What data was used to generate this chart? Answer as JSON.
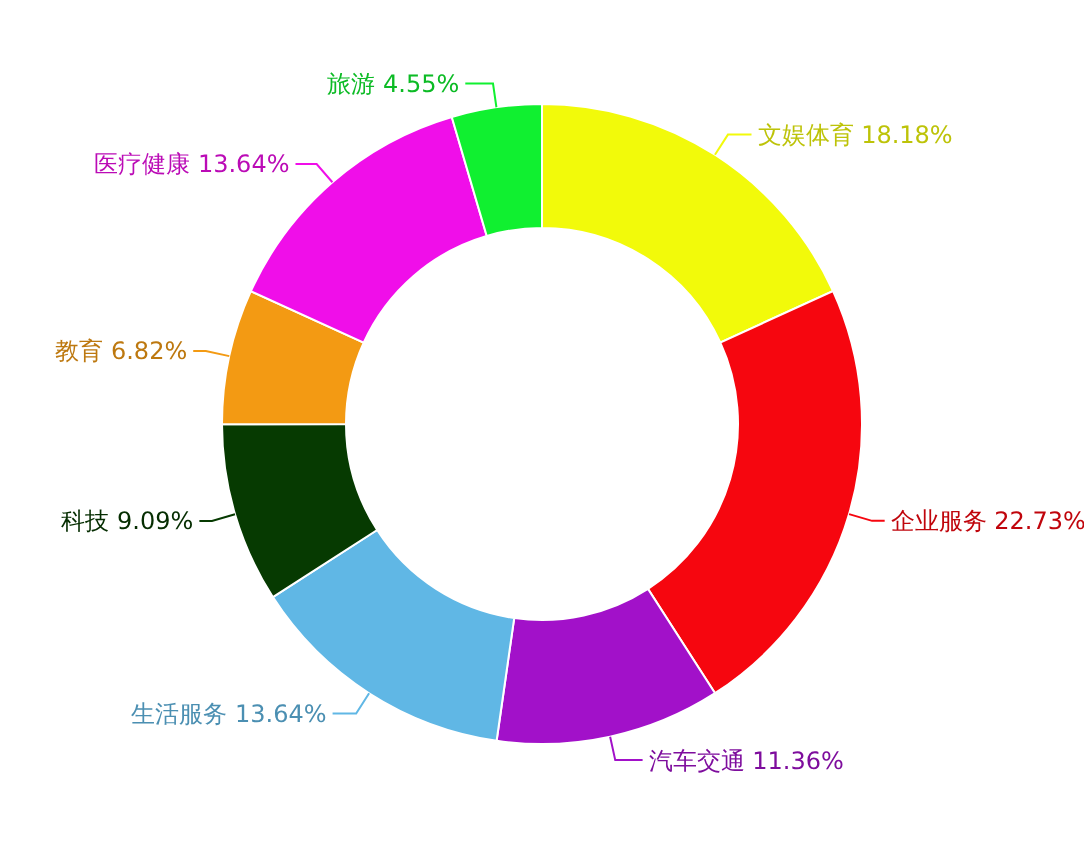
{
  "chart_data": {
    "type": "donut",
    "categories": [
      "文娱体育",
      "企业服务",
      "汽车交通",
      "生活服务",
      "科技",
      "教育",
      "医疗健康",
      "旅游"
    ],
    "values": [
      18.18,
      22.73,
      11.36,
      13.64,
      9.09,
      6.82,
      13.64,
      4.55
    ],
    "value_labels": [
      "18.18%",
      "22.73%",
      "11.36%",
      "13.64%",
      "9.09%",
      "6.82%",
      "13.64%",
      "4.55%"
    ],
    "colors": [
      "#f2fa0a",
      "#f6060f",
      "#a211c9",
      "#60b7e5",
      "#063a01",
      "#f39a13",
      "#f00ee9",
      "#10f030"
    ]
  }
}
